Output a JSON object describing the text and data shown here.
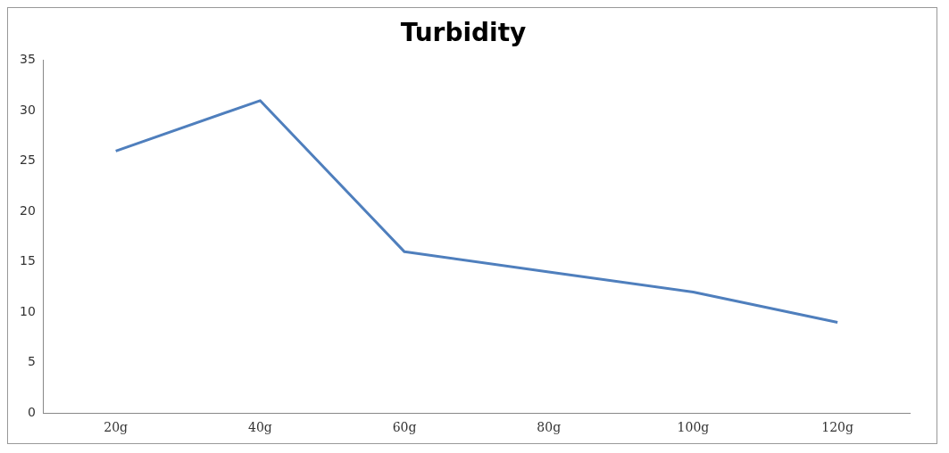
{
  "chart_data": {
    "type": "line",
    "title": "Turbidity",
    "categories": [
      "20g",
      "40g",
      "60g",
      "80g",
      "100g",
      "120g"
    ],
    "series": [
      {
        "color": "#4f7fbd",
        "values": [
          26,
          31,
          16,
          14,
          12,
          9
        ]
      }
    ],
    "ylim": [
      0,
      35
    ],
    "yticks": [
      0,
      5,
      10,
      15,
      20,
      25,
      30,
      35
    ],
    "grid": false,
    "legend": false,
    "marker": "none"
  }
}
